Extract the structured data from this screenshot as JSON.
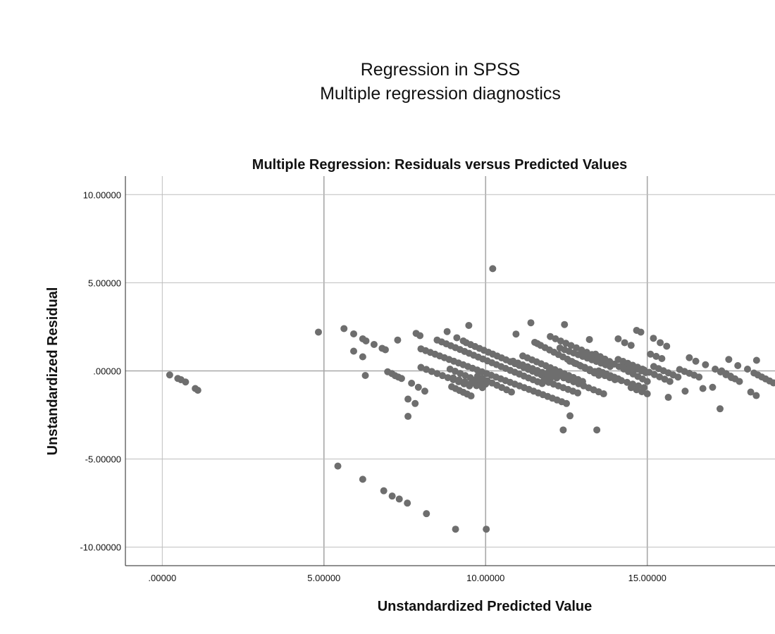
{
  "page": {
    "title": "Regression in SPSS",
    "subtitle": "Multiple regression diagnostics"
  },
  "chart_data": {
    "type": "scatter",
    "title": "Multiple Regression: Residuals versus Predicted Values",
    "xlabel": "Unstandardized Predicted Value",
    "ylabel": "Unstandardized Residual",
    "xlim": [
      -1.14,
      18.95
    ],
    "ylim": [
      -11.05,
      11.05
    ],
    "x_ticks": [
      0,
      5,
      10,
      15
    ],
    "x_tick_labels": [
      ".00000",
      "5.00000",
      "10.00000",
      "15.00000"
    ],
    "y_ticks": [
      10,
      5,
      0,
      -5,
      -10
    ],
    "y_tick_labels": [
      "10.00000",
      "5.00000",
      ".00000",
      "-5.00000",
      "-10.00000"
    ],
    "grid": true,
    "marker_color": "#6e6e6e",
    "points": [
      [
        0.23,
        -0.23
      ],
      [
        0.48,
        -0.43
      ],
      [
        0.58,
        -0.5
      ],
      [
        0.72,
        -0.63
      ],
      [
        1.02,
        -1.0
      ],
      [
        1.1,
        -1.1
      ],
      [
        4.83,
        2.2
      ],
      [
        5.62,
        2.4
      ],
      [
        5.92,
        2.1
      ],
      [
        5.92,
        1.12
      ],
      [
        6.2,
        1.82
      ],
      [
        6.3,
        1.7
      ],
      [
        6.2,
        0.8
      ],
      [
        6.28,
        -0.26
      ],
      [
        6.55,
        1.5
      ],
      [
        6.8,
        1.28
      ],
      [
        6.9,
        1.2
      ],
      [
        7.28,
        1.75
      ],
      [
        7.85,
        2.13
      ],
      [
        7.97,
        2.0
      ],
      [
        8.81,
        2.23
      ],
      [
        9.48,
        2.58
      ],
      [
        9.11,
        1.88
      ],
      [
        9.31,
        1.7
      ],
      [
        6.97,
        -0.05
      ],
      [
        7.1,
        -0.15
      ],
      [
        7.2,
        -0.27
      ],
      [
        7.3,
        -0.35
      ],
      [
        7.4,
        -0.43
      ],
      [
        7.6,
        -1.6
      ],
      [
        7.82,
        -1.85
      ],
      [
        8.12,
        -1.15
      ],
      [
        7.71,
        -0.7
      ],
      [
        7.92,
        -0.93
      ],
      [
        7.6,
        -2.58
      ],
      [
        5.43,
        -5.4
      ],
      [
        6.2,
        -6.15
      ],
      [
        6.85,
        -6.8
      ],
      [
        7.11,
        -7.1
      ],
      [
        7.33,
        -7.27
      ],
      [
        7.58,
        -7.5
      ],
      [
        8.17,
        -8.1
      ],
      [
        9.07,
        -8.98
      ],
      [
        10.02,
        -8.98
      ],
      [
        10.22,
        5.8
      ],
      [
        11.4,
        2.73
      ],
      [
        12.44,
        2.63
      ],
      [
        10.94,
        2.09
      ],
      [
        11.52,
        1.62
      ],
      [
        11.6,
        1.55
      ],
      [
        13.21,
        1.78
      ],
      [
        12.4,
        -3.35
      ],
      [
        12.61,
        -2.55
      ],
      [
        13.44,
        -3.35
      ],
      [
        14.67,
        2.3
      ],
      [
        14.8,
        2.2
      ],
      [
        15.19,
        1.85
      ],
      [
        15.4,
        1.6
      ],
      [
        15.6,
        1.4
      ],
      [
        14.1,
        1.82
      ],
      [
        14.3,
        1.6
      ],
      [
        14.5,
        1.45
      ],
      [
        15.65,
        -1.5
      ],
      [
        16.17,
        -1.15
      ],
      [
        16.72,
        -1.0
      ],
      [
        17.02,
        -0.93
      ],
      [
        17.25,
        -2.15
      ],
      [
        18.38,
        0.6
      ],
      [
        18.2,
        -1.2
      ],
      [
        18.37,
        -1.4
      ],
      [
        16.3,
        0.75
      ],
      [
        16.5,
        0.55
      ],
      [
        16.8,
        0.35
      ],
      [
        17.52,
        0.65
      ],
      [
        17.8,
        0.3
      ],
      [
        18.1,
        0.1
      ]
    ],
    "streaks": [
      [
        8.0,
        1.25,
        12.5,
        -1.85,
        32
      ],
      [
        8.5,
        1.75,
        11.75,
        -0.72,
        24
      ],
      [
        9.4,
        1.6,
        12.0,
        -0.45,
        20
      ],
      [
        8.0,
        0.2,
        9.5,
        -0.85,
        10
      ],
      [
        8.9,
        0.1,
        10.0,
        -0.75,
        8
      ],
      [
        8.95,
        -0.9,
        9.55,
        -1.42,
        6
      ],
      [
        9.0,
        -0.4,
        9.9,
        -0.95,
        6
      ],
      [
        9.75,
        -0.3,
        10.8,
        -1.2,
        8
      ],
      [
        11.15,
        0.85,
        13.0,
        -0.6,
        14
      ],
      [
        11.7,
        1.45,
        13.5,
        -0.25,
        14
      ],
      [
        10.85,
        0.55,
        12.2,
        -0.4,
        10
      ],
      [
        12.0,
        1.95,
        13.45,
        0.8,
        10
      ],
      [
        12.3,
        1.3,
        13.85,
        0.25,
        12
      ],
      [
        12.6,
        0.55,
        14.0,
        -0.5,
        10
      ],
      [
        11.8,
        -0.55,
        12.85,
        -1.25,
        8
      ],
      [
        11.95,
        -0.05,
        13.65,
        -1.3,
        12
      ],
      [
        13.4,
        0.95,
        15.0,
        -0.6,
        12
      ],
      [
        14.3,
        0.4,
        14.95,
        -0.1,
        6
      ],
      [
        13.5,
        0.0,
        14.1,
        -0.45,
        6
      ],
      [
        14.1,
        0.65,
        14.85,
        0.1,
        6
      ],
      [
        14.2,
        -0.55,
        14.9,
        -0.95,
        5
      ],
      [
        14.5,
        -0.95,
        15.0,
        -1.3,
        4
      ],
      [
        15.1,
        0.95,
        15.45,
        0.7,
        3
      ],
      [
        15.2,
        0.25,
        15.95,
        -0.35,
        6
      ],
      [
        14.9,
        0.05,
        15.7,
        -0.6,
        6
      ],
      [
        16.0,
        0.08,
        16.6,
        -0.35,
        5
      ],
      [
        17.1,
        0.1,
        17.6,
        -0.38,
        4
      ],
      [
        17.3,
        0.0,
        17.85,
        -0.6,
        5
      ],
      [
        18.3,
        -0.12,
        18.9,
        -0.68,
        6
      ]
    ]
  }
}
